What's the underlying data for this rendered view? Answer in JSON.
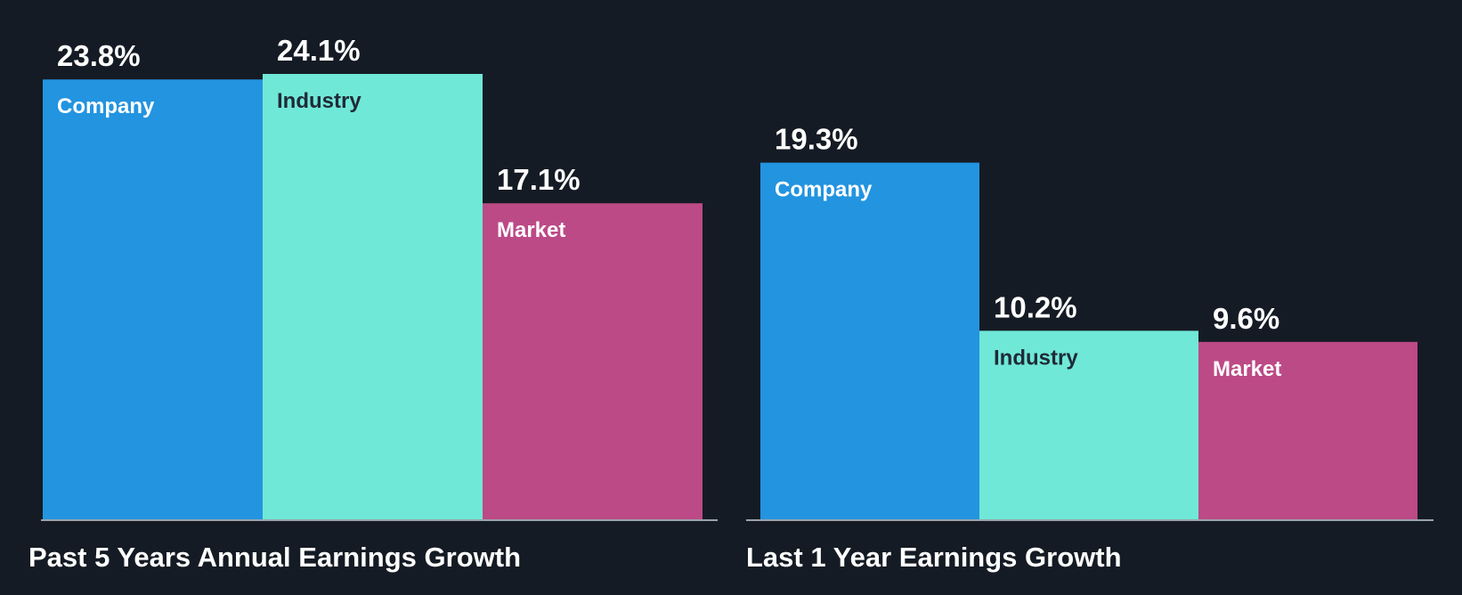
{
  "chart_data": [
    {
      "type": "bar",
      "title": "Past 5 Years Annual Earnings Growth",
      "categories": [
        "Company",
        "Industry",
        "Market"
      ],
      "values": [
        23.8,
        24.1,
        17.1
      ],
      "value_labels": [
        "23.8%",
        "24.1%",
        "17.1%"
      ],
      "unit": "%",
      "ylim": [
        0,
        24.1
      ],
      "colors": [
        "#2394e0",
        "#70e8d7",
        "#bc4a87"
      ],
      "label_colors": [
        "#ffffff",
        "#1f2a37",
        "#ffffff"
      ]
    },
    {
      "type": "bar",
      "title": "Last 1 Year Earnings Growth",
      "categories": [
        "Company",
        "Industry",
        "Market"
      ],
      "values": [
        19.3,
        10.2,
        9.6
      ],
      "value_labels": [
        "19.3%",
        "10.2%",
        "9.6%"
      ],
      "unit": "%",
      "ylim": [
        0,
        24.1
      ],
      "colors": [
        "#2394e0",
        "#70e8d7",
        "#bc4a87"
      ],
      "label_colors": [
        "#ffffff",
        "#1f2a37",
        "#ffffff"
      ]
    }
  ],
  "colors": {
    "background": "#151b24",
    "baseline": "#9aa3ad"
  }
}
